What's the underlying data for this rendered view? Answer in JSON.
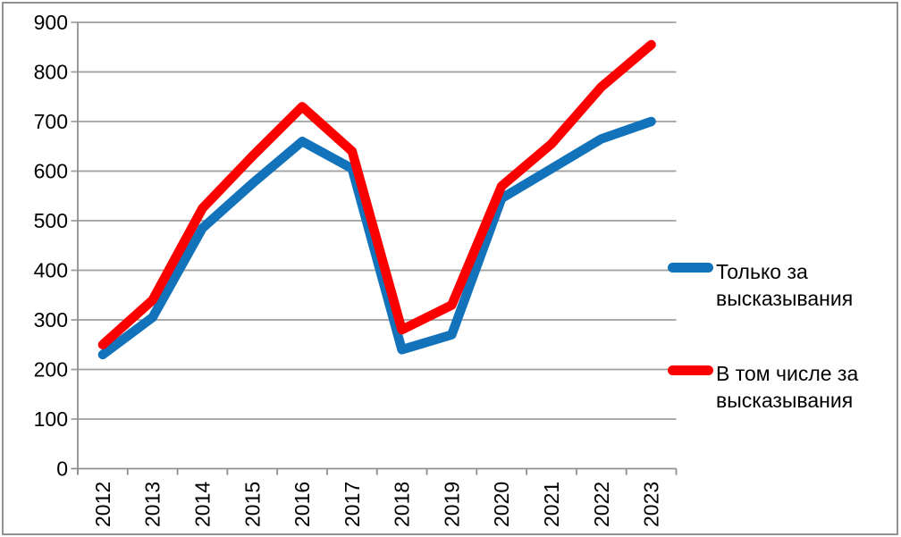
{
  "chart_data": {
    "type": "line",
    "title": "",
    "xlabel": "",
    "ylabel": "",
    "categories": [
      "2012",
      "2013",
      "2014",
      "2015",
      "2016",
      "2017",
      "2018",
      "2019",
      "2020",
      "2021",
      "2022",
      "2023"
    ],
    "series": [
      {
        "name": "Только за высказывания",
        "color": "#1273BA",
        "values": [
          230,
          305,
          485,
          575,
          660,
          605,
          240,
          270,
          545,
          605,
          665,
          700
        ]
      },
      {
        "name": "В том числе за высказывания",
        "color": "#FC0000",
        "values": [
          250,
          340,
          525,
          630,
          730,
          640,
          280,
          330,
          570,
          655,
          770,
          855
        ]
      }
    ],
    "ylim": [
      0,
      900
    ],
    "yticks": [
      0,
      100,
      200,
      300,
      400,
      500,
      600,
      700,
      800,
      900
    ],
    "grid": true,
    "legend_position": "right",
    "x_tick_label_rotation": -90
  },
  "legend": {
    "entries": [
      {
        "line1": "Только за",
        "line2": "высказывания"
      },
      {
        "line1": "В том числе за",
        "line2": "высказывания"
      }
    ]
  },
  "style_colors": {
    "series_blue": "#1273BA",
    "series_red": "#FC0000",
    "gridline": "#9E9E9E",
    "axis": "#8F8F8F",
    "frame_border": "#919191",
    "background": "#FFFFFF",
    "text": "#000000"
  }
}
